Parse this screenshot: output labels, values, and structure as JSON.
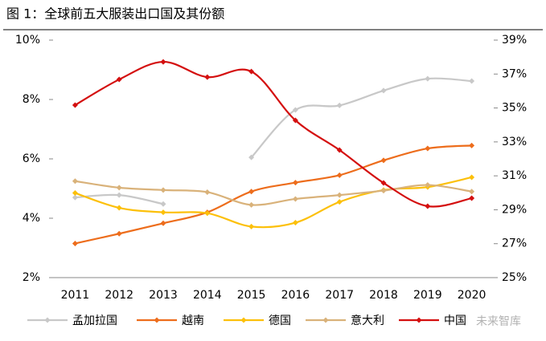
{
  "chart_data": {
    "type": "line",
    "title": "图 1：全球前五大服装出口国及其份额",
    "watermark": "未来智库",
    "categories": [
      "2011",
      "2012",
      "2013",
      "2014",
      "2015",
      "2016",
      "2017",
      "2018",
      "2019",
      "2020"
    ],
    "ylim": [
      2,
      10
    ],
    "yticks": [
      {
        "value": 2,
        "label": "2%"
      },
      {
        "value": 4,
        "label": "4%"
      },
      {
        "value": 6,
        "label": "6%"
      },
      {
        "value": 8,
        "label": "8%"
      },
      {
        "value": 10,
        "label": "10%"
      }
    ],
    "y2lim": [
      25,
      39
    ],
    "y2ticks": [
      {
        "value": 25,
        "label": "25%"
      },
      {
        "value": 27,
        "label": "27%"
      },
      {
        "value": 29,
        "label": "29%"
      },
      {
        "value": 31,
        "label": "31%"
      },
      {
        "value": 33,
        "label": "33%"
      },
      {
        "value": 35,
        "label": "35%"
      },
      {
        "value": 37,
        "label": "37%"
      },
      {
        "value": 39,
        "label": "39%"
      }
    ],
    "series": [
      {
        "name": "孟加拉国",
        "color": "#c8c8c8",
        "values": [
          4.7,
          4.78,
          4.48,
          null,
          6.05,
          7.65,
          7.8,
          8.3,
          8.7,
          8.62
        ]
      },
      {
        "name": "越南",
        "color": "#ed6d1c",
        "values": [
          3.15,
          3.48,
          3.83,
          4.2,
          4.9,
          5.2,
          5.45,
          5.95,
          6.35,
          6.45
        ]
      },
      {
        "name": "德国",
        "color": "#fcc00a",
        "values": [
          4.85,
          4.35,
          4.2,
          4.17,
          3.72,
          3.85,
          4.55,
          4.95,
          5.05,
          5.38
        ]
      },
      {
        "name": "意大利",
        "color": "#d9b27a",
        "values": [
          5.25,
          5.03,
          4.95,
          4.88,
          4.45,
          4.65,
          4.78,
          4.93,
          5.12,
          4.9
        ]
      },
      {
        "name": "中国",
        "color": "#d40f0f",
        "axis": "y2",
        "values": [
          35.17,
          36.68,
          37.72,
          36.82,
          37.15,
          34.27,
          32.52,
          30.58,
          29.21,
          29.68
        ]
      }
    ]
  }
}
